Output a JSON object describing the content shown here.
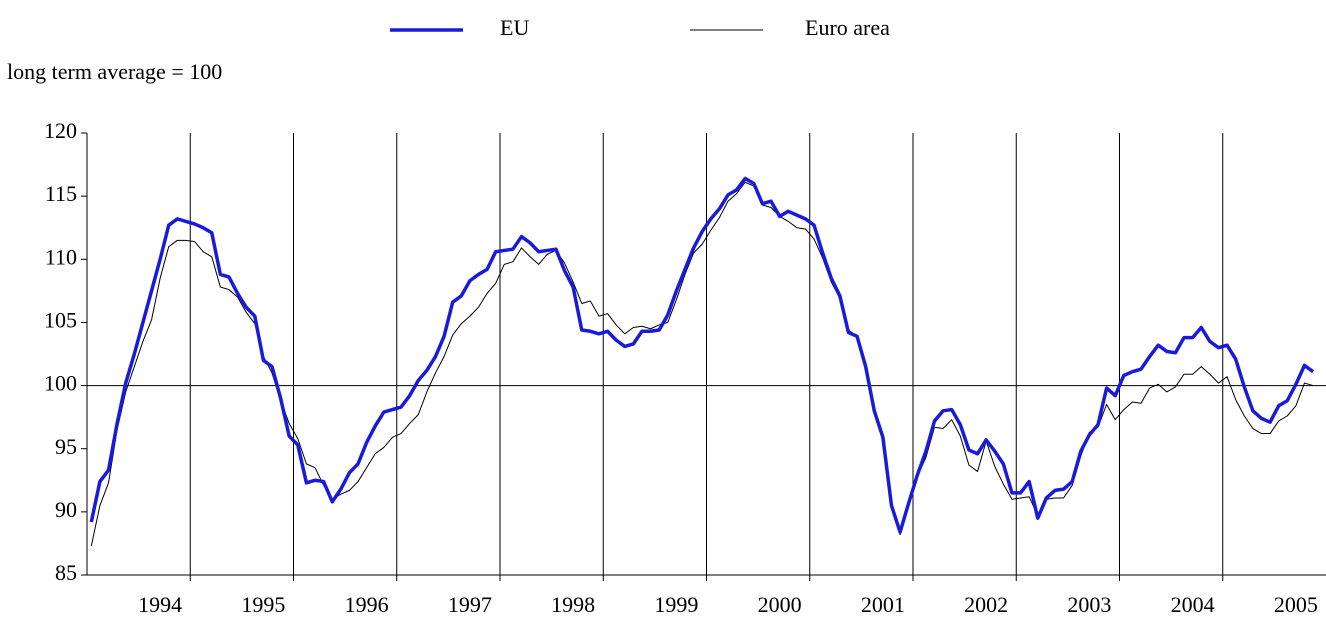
{
  "chart_data": {
    "type": "line",
    "ylabel": "long term average = 100",
    "categories": [
      null,
      null,
      null,
      null,
      null,
      null,
      null,
      null,
      "1994",
      null,
      null,
      null,
      null,
      null,
      null,
      null,
      null,
      null,
      null,
      null,
      "1995",
      null,
      null,
      null,
      null,
      null,
      null,
      null,
      null,
      null,
      null,
      null,
      "1996",
      null,
      null,
      null,
      null,
      null,
      null,
      null,
      null,
      null,
      null,
      null,
      "1997",
      null,
      null,
      null,
      null,
      null,
      null,
      null,
      null,
      null,
      null,
      null,
      "1998",
      null,
      null,
      null,
      null,
      null,
      null,
      null,
      null,
      null,
      null,
      null,
      "1999",
      null,
      null,
      null,
      null,
      null,
      null,
      null,
      null,
      null,
      null,
      null,
      "2000",
      null,
      null,
      null,
      null,
      null,
      null,
      null,
      null,
      null,
      null,
      null,
      "2001",
      null,
      null,
      null,
      null,
      null,
      null,
      null,
      null,
      null,
      null,
      null,
      "2002",
      null,
      null,
      null,
      null,
      null,
      null,
      null,
      null,
      null,
      null,
      null,
      "2003",
      null,
      null,
      null,
      null,
      null,
      null,
      null,
      null,
      null,
      null,
      null,
      "2004",
      null,
      null,
      null,
      null,
      null,
      null,
      null,
      null,
      null,
      null,
      null,
      "2005",
      null,
      null
    ],
    "series": [
      {
        "name": "EU",
        "color": "#1a1adc",
        "width": 3.5,
        "values": [
          89.2,
          92.4,
          93.3,
          97,
          100.2,
          102.5,
          105,
          107.5,
          110,
          112.7,
          113.2,
          113,
          112.8,
          112.5,
          112.1,
          108.8,
          108.6,
          107.3,
          106.2,
          105.5,
          102,
          101.5,
          99,
          96,
          95.3,
          92.3,
          92.5,
          92.4,
          90.8,
          91.8,
          93.1,
          93.8,
          95.5,
          96.8,
          97.9,
          98.1,
          98.3,
          99.2,
          100.4,
          101.2,
          102.3,
          103.9,
          106.6,
          107.1,
          108.3,
          108.8,
          109.2,
          110.6,
          110.7,
          110.8,
          111.8,
          111.3,
          110.6,
          110.7,
          110.8,
          109.1,
          107.8,
          104.4,
          104.3,
          104.1,
          104.3,
          103.6,
          103.1,
          103.3,
          104.3,
          104.3,
          104.4,
          105.6,
          107.5,
          109.2,
          110.9,
          112.2,
          113.2,
          114,
          115.1,
          115.5,
          116.4,
          116,
          114.4,
          114.6,
          113.4,
          113.8,
          113.5,
          113.2,
          112.7,
          110.5,
          108.5,
          107.1,
          104.2,
          103.9,
          101.5,
          98,
          95.9,
          90.5,
          88.4,
          90.7,
          92.9,
          94.8,
          97.2,
          98,
          98.1,
          96.9,
          94.9,
          94.6,
          95.7,
          94.8,
          93.8,
          91.5,
          91.5,
          92.4,
          89.5,
          91.1,
          91.7,
          91.8,
          92.4,
          94.8,
          96.1,
          96.9,
          99.8,
          99.2,
          100.8,
          101.1,
          101.3,
          102.3,
          103.2,
          102.7,
          102.6,
          103.8,
          103.8,
          104.6,
          103.5,
          103,
          103.2,
          102.1,
          99.9,
          98,
          97.4,
          97.1,
          98.4,
          98.8,
          100.1,
          101.6,
          101.1
        ]
      },
      {
        "name": "Euro area",
        "color": "#000000",
        "width": 1,
        "values": [
          87.3,
          90.5,
          92.3,
          96.5,
          99.5,
          101.5,
          103.5,
          105.2,
          108.5,
          111,
          111.5,
          111.5,
          111.4,
          110.6,
          110.2,
          107.8,
          107.6,
          107,
          105.8,
          104.9,
          102.3,
          101,
          98.8,
          97,
          95.8,
          93.8,
          93.5,
          92.1,
          91,
          91.4,
          91.7,
          92.4,
          93.5,
          94.6,
          95.1,
          95.9,
          96.2,
          97,
          97.7,
          99.5,
          101,
          102.3,
          104,
          104.9,
          105.5,
          106.2,
          107.3,
          108.1,
          109.6,
          109.8,
          110.9,
          110.2,
          109.6,
          110.4,
          110.7,
          109.7,
          108.2,
          106.5,
          106.7,
          105.5,
          105.7,
          104.8,
          104.1,
          104.6,
          104.7,
          104.5,
          104.8,
          105,
          106.8,
          108.8,
          110.5,
          111.2,
          112.3,
          113.3,
          114.6,
          115.2,
          116.1,
          115.8,
          114.3,
          114.1,
          113.4,
          113,
          112.5,
          112.4,
          111.6,
          110.1,
          108.2,
          106.9,
          104.4,
          103.9,
          101.2,
          98.2,
          96.1,
          90.5,
          88.2,
          90.5,
          92.8,
          94.3,
          96.7,
          96.6,
          97.3,
          96,
          93.7,
          93.2,
          95.6,
          93.6,
          92.2,
          91,
          91.1,
          91.2,
          89.7,
          91,
          91.1,
          91.1,
          92.1,
          94.4,
          96.3,
          96.7,
          98.5,
          97.3,
          98.1,
          98.7,
          98.6,
          99.8,
          100.1,
          99.5,
          99.9,
          100.9,
          100.9,
          101.5,
          100.9,
          100.2,
          100.7,
          98.9,
          97.6,
          96.6,
          96.2,
          96.2,
          97.2,
          97.6,
          98.4,
          100.2,
          100
        ]
      }
    ],
    "ylim": [
      85,
      120
    ],
    "yticks": [
      85,
      90,
      95,
      100,
      105,
      110,
      115,
      120
    ],
    "reference_line": 100
  }
}
